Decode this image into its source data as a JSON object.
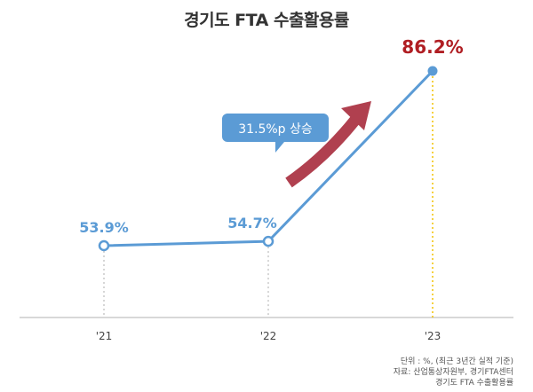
{
  "title": "경기도 FTA 수출활용률",
  "annotation": {
    "label": "31.5%p 상승",
    "arrow_color": "#b0404f",
    "box_color": "#5b9bd5"
  },
  "source_lines": [
    "단위 : %, (최근 3년간 실적 기준)",
    "자료: 산업통상자원부, 경기FTA센터",
    "경기도 FTA 수출활용률"
  ],
  "colors": {
    "line": "#5b9bd5",
    "label_normal": "#5b9bd5",
    "label_highlight": "#b01e23",
    "guide_normal": "#bbbbbb",
    "guide_highlight": "#f2c200",
    "axis": "#cccccc",
    "tick_text": "#444444"
  },
  "chart_data": {
    "type": "line",
    "title": "경기도 FTA 수출활용률",
    "categories": [
      "'21",
      "'22",
      "'23"
    ],
    "x": [
      "'21",
      "'22",
      "'23"
    ],
    "values": [
      53.9,
      54.7,
      86.2
    ],
    "data_labels": [
      "53.9%",
      "54.7%",
      "86.2%"
    ],
    "highlight_index": 2,
    "unit": "%",
    "ylim": [
      40,
      90
    ],
    "grid": false,
    "legend": "none"
  }
}
